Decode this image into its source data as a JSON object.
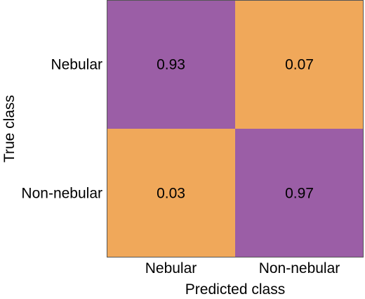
{
  "chart_data": {
    "type": "heatmap",
    "title": "",
    "xlabel": "Predicted class",
    "ylabel": "True class",
    "x_categories": [
      "Nebular",
      "Non-nebular"
    ],
    "y_categories": [
      "Nebular",
      "Non-nebular"
    ],
    "values": [
      [
        0.93,
        0.07
      ],
      [
        0.03,
        0.97
      ]
    ],
    "value_labels": [
      [
        "0.93",
        "0.07"
      ],
      [
        "0.03",
        "0.97"
      ]
    ],
    "colors": {
      "high": "#9b5ea6",
      "low": "#f0a85a",
      "border": "#555555"
    },
    "threshold": 0.5,
    "grid": false,
    "legend": "none"
  }
}
